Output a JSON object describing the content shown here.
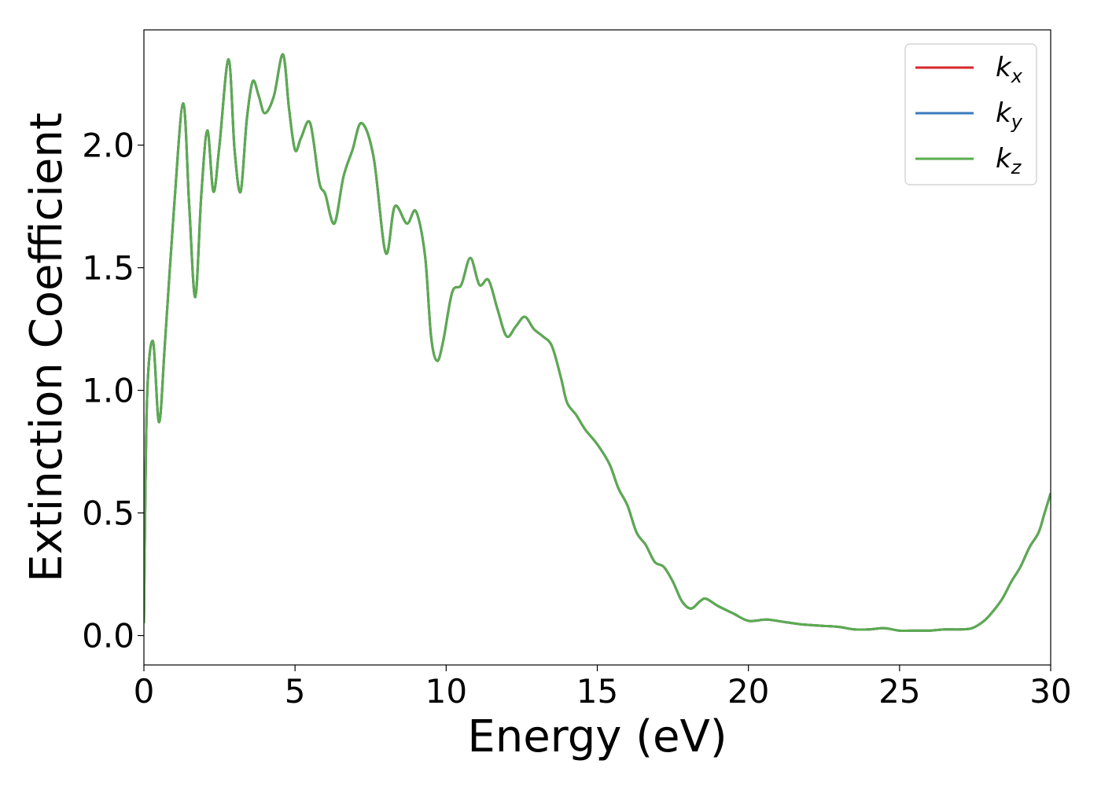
{
  "chart_data": {
    "type": "line",
    "title": "",
    "xlabel": "Energy (eV)",
    "ylabel": "Extinction Coefficient",
    "xlim": [
      0,
      30
    ],
    "ylim": [
      -0.12,
      2.47
    ],
    "x_ticks": [
      0,
      5,
      10,
      15,
      20,
      25,
      30
    ],
    "y_ticks": [
      0.0,
      0.5,
      1.0,
      1.5,
      2.0
    ],
    "x_tick_labels": [
      "0",
      "5",
      "10",
      "15",
      "20",
      "25",
      "30"
    ],
    "y_tick_labels": [
      "0.0",
      "0.5",
      "1.0",
      "1.5",
      "2.0"
    ],
    "grid": false,
    "legend_position": "top-right",
    "colors": {
      "kx": "#d62728",
      "ky": "#3a7bbf",
      "kz": "#5aab4f"
    },
    "legend": [
      {
        "base": "k",
        "sub": "x",
        "color": "#d62728"
      },
      {
        "base": "k",
        "sub": "y",
        "color": "#3a7bbf"
      },
      {
        "base": "k",
        "sub": "z",
        "color": "#5aab4f"
      }
    ],
    "x": [
      0,
      0.1,
      0.3,
      0.5,
      0.7,
      1.0,
      1.3,
      1.5,
      1.7,
      1.9,
      2.1,
      2.3,
      2.5,
      2.8,
      3.0,
      3.2,
      3.4,
      3.6,
      3.8,
      4.0,
      4.3,
      4.6,
      4.8,
      5.0,
      5.2,
      5.5,
      5.8,
      6.0,
      6.3,
      6.6,
      6.9,
      7.2,
      7.6,
      8.0,
      8.3,
      8.7,
      9.0,
      9.3,
      9.5,
      9.7,
      9.9,
      10.2,
      10.5,
      10.8,
      11.1,
      11.4,
      11.7,
      12.0,
      12.3,
      12.6,
      12.9,
      13.2,
      13.5,
      13.8,
      14.0,
      14.3,
      14.6,
      15.0,
      15.4,
      15.7,
      16.0,
      16.3,
      16.6,
      16.9,
      17.2,
      17.5,
      17.8,
      18.1,
      18.4,
      18.6,
      19.0,
      19.5,
      20.0,
      20.6,
      21.2,
      21.8,
      22.4,
      23.0,
      23.5,
      24.0,
      24.5,
      25.0,
      25.5,
      26.0,
      26.5,
      27.0,
      27.4,
      27.8,
      28.1,
      28.4,
      28.7,
      29.0,
      29.3,
      29.6,
      29.8,
      30.0
    ],
    "series": [
      {
        "name": "kx",
        "values": [
          0.05,
          0.95,
          1.2,
          0.87,
          1.2,
          1.75,
          2.17,
          1.75,
          1.38,
          1.8,
          2.06,
          1.81,
          2.0,
          2.35,
          1.98,
          1.81,
          2.1,
          2.26,
          2.2,
          2.13,
          2.2,
          2.37,
          2.15,
          1.98,
          2.03,
          2.09,
          1.85,
          1.8,
          1.68,
          1.87,
          1.98,
          2.09,
          1.95,
          1.56,
          1.75,
          1.68,
          1.73,
          1.55,
          1.22,
          1.12,
          1.2,
          1.4,
          1.43,
          1.54,
          1.43,
          1.45,
          1.33,
          1.22,
          1.26,
          1.3,
          1.25,
          1.22,
          1.18,
          1.05,
          0.95,
          0.9,
          0.84,
          0.78,
          0.7,
          0.6,
          0.53,
          0.42,
          0.37,
          0.3,
          0.28,
          0.22,
          0.14,
          0.11,
          0.14,
          0.15,
          0.12,
          0.09,
          0.06,
          0.065,
          0.055,
          0.045,
          0.04,
          0.035,
          0.025,
          0.025,
          0.03,
          0.02,
          0.02,
          0.02,
          0.025,
          0.025,
          0.03,
          0.06,
          0.1,
          0.15,
          0.22,
          0.28,
          0.36,
          0.42,
          0.5,
          0.58
        ]
      },
      {
        "name": "ky",
        "values": [
          0.05,
          0.95,
          1.2,
          0.87,
          1.2,
          1.75,
          2.17,
          1.75,
          1.38,
          1.8,
          2.06,
          1.81,
          2.0,
          2.35,
          1.98,
          1.81,
          2.1,
          2.26,
          2.2,
          2.13,
          2.2,
          2.37,
          2.15,
          1.98,
          2.03,
          2.09,
          1.85,
          1.8,
          1.68,
          1.87,
          1.98,
          2.09,
          1.95,
          1.56,
          1.75,
          1.68,
          1.73,
          1.55,
          1.22,
          1.12,
          1.2,
          1.4,
          1.43,
          1.54,
          1.43,
          1.45,
          1.33,
          1.22,
          1.26,
          1.3,
          1.25,
          1.22,
          1.18,
          1.05,
          0.95,
          0.9,
          0.84,
          0.78,
          0.7,
          0.6,
          0.53,
          0.42,
          0.37,
          0.3,
          0.28,
          0.22,
          0.14,
          0.11,
          0.14,
          0.15,
          0.12,
          0.09,
          0.06,
          0.065,
          0.055,
          0.045,
          0.04,
          0.035,
          0.025,
          0.025,
          0.03,
          0.02,
          0.02,
          0.02,
          0.025,
          0.025,
          0.03,
          0.06,
          0.1,
          0.15,
          0.22,
          0.28,
          0.36,
          0.42,
          0.5,
          0.58
        ]
      },
      {
        "name": "kz",
        "values": [
          0.05,
          0.95,
          1.2,
          0.87,
          1.2,
          1.75,
          2.17,
          1.75,
          1.38,
          1.8,
          2.06,
          1.81,
          2.0,
          2.35,
          1.98,
          1.81,
          2.1,
          2.26,
          2.2,
          2.13,
          2.2,
          2.37,
          2.15,
          1.98,
          2.03,
          2.09,
          1.85,
          1.8,
          1.68,
          1.87,
          1.98,
          2.09,
          1.95,
          1.56,
          1.75,
          1.68,
          1.73,
          1.55,
          1.22,
          1.12,
          1.2,
          1.4,
          1.43,
          1.54,
          1.43,
          1.45,
          1.33,
          1.22,
          1.26,
          1.3,
          1.25,
          1.22,
          1.18,
          1.05,
          0.95,
          0.9,
          0.84,
          0.78,
          0.7,
          0.6,
          0.53,
          0.42,
          0.37,
          0.3,
          0.28,
          0.22,
          0.14,
          0.11,
          0.14,
          0.15,
          0.12,
          0.09,
          0.06,
          0.065,
          0.055,
          0.045,
          0.04,
          0.035,
          0.025,
          0.025,
          0.03,
          0.02,
          0.02,
          0.02,
          0.025,
          0.025,
          0.03,
          0.06,
          0.1,
          0.15,
          0.22,
          0.28,
          0.36,
          0.42,
          0.5,
          0.58
        ]
      }
    ]
  }
}
